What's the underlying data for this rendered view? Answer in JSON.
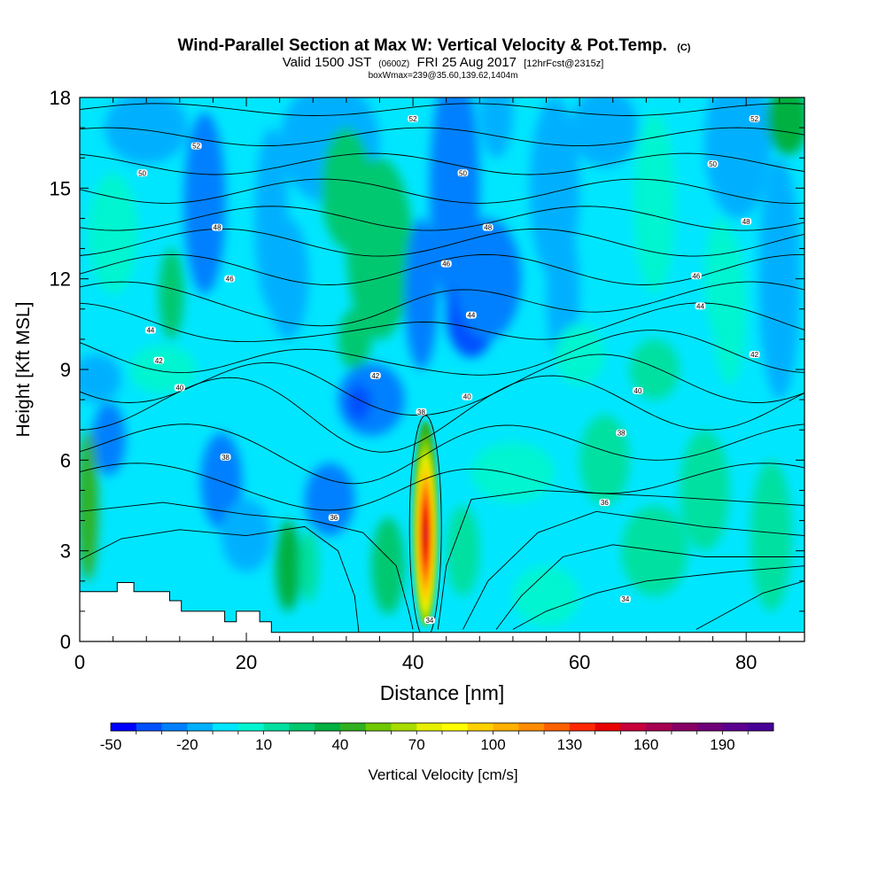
{
  "chart_data": {
    "type": "heatmap",
    "title": "Wind-Parallel Section at Max W: Vertical Velocity & Pot.Temp.",
    "title_unit": "(C)",
    "subtitle_valid": "Valid 1500 JST",
    "subtitle_z": "(0600Z)",
    "subtitle_date": "FRI 25 Aug 2017",
    "subtitle_fcst": "[12hrFcst@2315z]",
    "subtitle_box": "boxWmax=239@35.60,139.62,1404m",
    "xlabel": "Distance [nm]",
    "ylabel": "Height [Kft MSL]",
    "xlim": [
      0,
      87
    ],
    "ylim": [
      0,
      18
    ],
    "x_ticks": [
      "0",
      "20",
      "40",
      "60",
      "80"
    ],
    "x_tick_values": [
      0,
      20,
      40,
      60,
      80
    ],
    "y_ticks": [
      "0",
      "3",
      "6",
      "9",
      "12",
      "15",
      "18"
    ],
    "y_tick_values": [
      0,
      3,
      6,
      9,
      12,
      15,
      18
    ],
    "colorbar": {
      "label": "Vertical Velocity [cm/s]",
      "tick_labels": [
        "-50",
        "-20",
        "10",
        "40",
        "70",
        "100",
        "130",
        "160",
        "190"
      ],
      "tick_values": [
        -50,
        -20,
        10,
        40,
        70,
        100,
        130,
        160,
        190
      ],
      "range": [
        -50,
        210
      ],
      "step": 10,
      "colors": [
        "#0000ff",
        "#0050ff",
        "#0080ff",
        "#00b0ff",
        "#00e6ff",
        "#00f5d0",
        "#00e0a0",
        "#00c870",
        "#00b040",
        "#30b020",
        "#70c800",
        "#a8dc00",
        "#e6f000",
        "#ffff00",
        "#ffd000",
        "#ffb000",
        "#ff8c00",
        "#ff6000",
        "#ff2800",
        "#e80000",
        "#c8003c",
        "#a80050",
        "#880064",
        "#700078",
        "#5c0090",
        "#480096"
      ]
    },
    "updraft_core": {
      "x": 41.5,
      "ybottom": 0.5,
      "ytop": 7.3,
      "max_wvel": 239
    },
    "contour_labels": [
      {
        "text": "52",
        "x": 14,
        "y": 16.4
      },
      {
        "text": "52",
        "x": 40,
        "y": 17.3
      },
      {
        "text": "52",
        "x": 81,
        "y": 17.3
      },
      {
        "text": "50",
        "x": 7.5,
        "y": 15.5
      },
      {
        "text": "50",
        "x": 46,
        "y": 15.5
      },
      {
        "text": "50",
        "x": 76,
        "y": 15.8
      },
      {
        "text": "48",
        "x": 16.5,
        "y": 13.7
      },
      {
        "text": "48",
        "x": 49,
        "y": 13.7
      },
      {
        "text": "48",
        "x": 80,
        "y": 13.9
      },
      {
        "text": "46",
        "x": 18,
        "y": 12.0
      },
      {
        "text": "46",
        "x": 44,
        "y": 12.5
      },
      {
        "text": "46",
        "x": 74,
        "y": 12.1
      },
      {
        "text": "44",
        "x": 8.5,
        "y": 10.3
      },
      {
        "text": "44",
        "x": 47,
        "y": 10.8
      },
      {
        "text": "44",
        "x": 74.5,
        "y": 11.1
      },
      {
        "text": "42",
        "x": 9.5,
        "y": 9.3
      },
      {
        "text": "42",
        "x": 35.5,
        "y": 8.8
      },
      {
        "text": "42",
        "x": 81,
        "y": 9.5
      },
      {
        "text": "40",
        "x": 12,
        "y": 8.4
      },
      {
        "text": "40",
        "x": 46.5,
        "y": 8.1
      },
      {
        "text": "40",
        "x": 67,
        "y": 8.3
      },
      {
        "text": "38",
        "x": 17.5,
        "y": 6.1
      },
      {
        "text": "38",
        "x": 41,
        "y": 7.6
      },
      {
        "text": "38",
        "x": 65,
        "y": 6.9
      },
      {
        "text": "36",
        "x": 30.5,
        "y": 4.1
      },
      {
        "text": "36",
        "x": 63,
        "y": 4.6
      },
      {
        "text": "34",
        "x": 42,
        "y": 0.7
      },
      {
        "text": "34",
        "x": 65.5,
        "y": 1.4
      }
    ],
    "terrain_top": [
      {
        "x": 0,
        "y": 1.65
      },
      {
        "x": 4.5,
        "y": 1.65
      },
      {
        "x": 4.5,
        "y": 1.95
      },
      {
        "x": 6.5,
        "y": 1.95
      },
      {
        "x": 6.5,
        "y": 1.65
      },
      {
        "x": 10.8,
        "y": 1.65
      },
      {
        "x": 10.8,
        "y": 1.35
      },
      {
        "x": 12.2,
        "y": 1.35
      },
      {
        "x": 12.2,
        "y": 1.0
      },
      {
        "x": 17.4,
        "y": 1.0
      },
      {
        "x": 17.4,
        "y": 0.65
      },
      {
        "x": 18.8,
        "y": 0.65
      },
      {
        "x": 18.8,
        "y": 1.0
      },
      {
        "x": 21.6,
        "y": 1.0
      },
      {
        "x": 21.6,
        "y": 0.65
      },
      {
        "x": 23,
        "y": 0.65
      },
      {
        "x": 23,
        "y": 0.3
      },
      {
        "x": 87,
        "y": 0.3
      }
    ]
  }
}
